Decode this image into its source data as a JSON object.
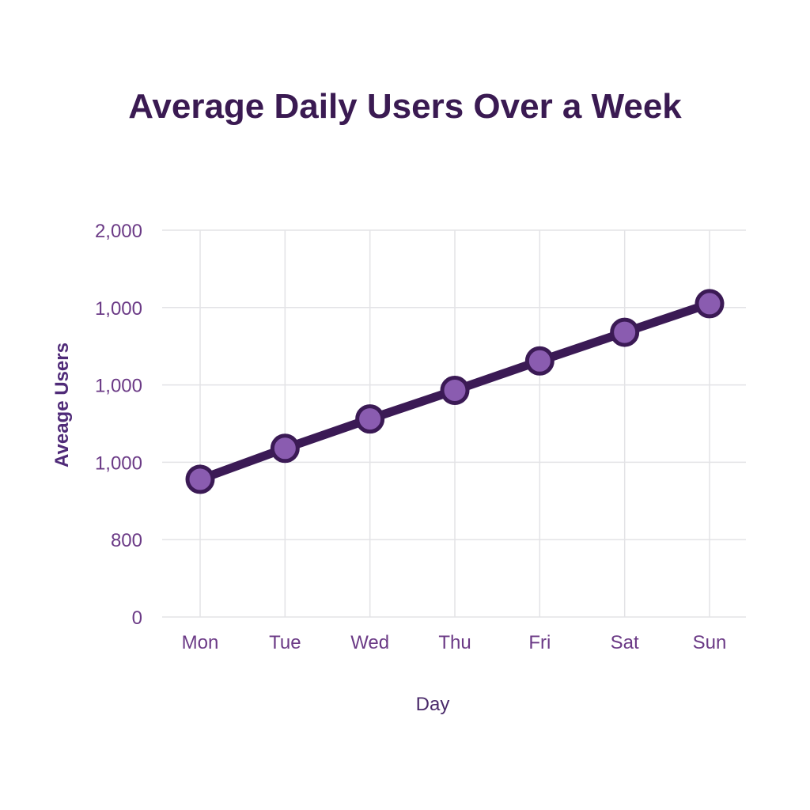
{
  "chart_data": {
    "type": "line",
    "title": "Average Daily Users Over a Week",
    "xlabel": "Day",
    "ylabel": "Aveage Users",
    "categories": [
      "Mon",
      "Tue",
      "Wed",
      "Thu",
      "Fri",
      "Sat",
      "Sun"
    ],
    "y_tick_labels": [
      "0",
      "800",
      "1,000",
      "1,000",
      "1,000",
      "2,000"
    ],
    "series": [
      {
        "values": [
          1.78,
          2.18,
          2.56,
          2.93,
          3.31,
          3.68,
          4.05
        ]
      }
    ],
    "y_scale_note": "y values expressed in tick-index units (0 = first tick, 5 = top tick)",
    "ylim": [
      0,
      5
    ],
    "grid": true,
    "colors": {
      "line": "#3b1a55",
      "marker_fill": "#8a5cb0",
      "marker_stroke": "#3b1a55",
      "title": "#3a1a52",
      "tick": "#6b3a86"
    }
  }
}
